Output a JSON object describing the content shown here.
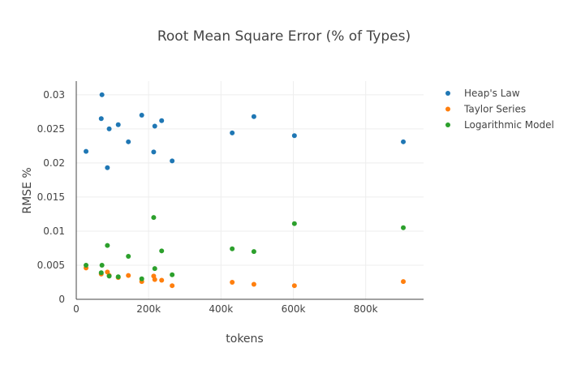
{
  "chart_data": {
    "type": "scatter",
    "title": "Root Mean Square Error (% of Types)",
    "xlabel": "tokens",
    "ylabel": "RMSE %",
    "xlim": [
      0,
      960000
    ],
    "ylim": [
      0,
      0.032
    ],
    "x_ticks": [
      0,
      200000,
      400000,
      600000,
      800000
    ],
    "x_tick_labels": [
      "0",
      "200k",
      "400k",
      "600k",
      "800k"
    ],
    "y_ticks": [
      0,
      0.005,
      0.01,
      0.015,
      0.02,
      0.025,
      0.03
    ],
    "y_tick_labels": [
      "0",
      "0.005",
      "0.01",
      "0.015",
      "0.02",
      "0.025",
      "0.03"
    ],
    "grid": true,
    "legend_position": "top-right",
    "series": [
      {
        "name": "Heap's Law",
        "color": "#1f77b4",
        "points": [
          {
            "x": 27000,
            "y": 0.0217
          },
          {
            "x": 69000,
            "y": 0.0265
          },
          {
            "x": 71000,
            "y": 0.03
          },
          {
            "x": 86000,
            "y": 0.0193
          },
          {
            "x": 91000,
            "y": 0.025
          },
          {
            "x": 116000,
            "y": 0.0256
          },
          {
            "x": 144000,
            "y": 0.0231
          },
          {
            "x": 181000,
            "y": 0.027
          },
          {
            "x": 214000,
            "y": 0.0216
          },
          {
            "x": 217000,
            "y": 0.0254
          },
          {
            "x": 236000,
            "y": 0.0262
          },
          {
            "x": 265000,
            "y": 0.0203
          },
          {
            "x": 431000,
            "y": 0.0244
          },
          {
            "x": 491000,
            "y": 0.0268
          },
          {
            "x": 603000,
            "y": 0.024
          },
          {
            "x": 904000,
            "y": 0.0231
          }
        ]
      },
      {
        "name": "Taylor Series",
        "color": "#ff7f0e",
        "points": [
          {
            "x": 27000,
            "y": 0.0046
          },
          {
            "x": 69000,
            "y": 0.0037
          },
          {
            "x": 86000,
            "y": 0.004
          },
          {
            "x": 91000,
            "y": 0.0035
          },
          {
            "x": 116000,
            "y": 0.0032
          },
          {
            "x": 144000,
            "y": 0.0035
          },
          {
            "x": 181000,
            "y": 0.0026
          },
          {
            "x": 214000,
            "y": 0.0034
          },
          {
            "x": 217000,
            "y": 0.0029
          },
          {
            "x": 236000,
            "y": 0.0028
          },
          {
            "x": 265000,
            "y": 0.002
          },
          {
            "x": 431000,
            "y": 0.0025
          },
          {
            "x": 491000,
            "y": 0.0022
          },
          {
            "x": 603000,
            "y": 0.002
          },
          {
            "x": 904000,
            "y": 0.0026
          }
        ]
      },
      {
        "name": "Logarithmic Model",
        "color": "#2ca02c",
        "points": [
          {
            "x": 27000,
            "y": 0.005
          },
          {
            "x": 69000,
            "y": 0.0039
          },
          {
            "x": 71000,
            "y": 0.005
          },
          {
            "x": 86000,
            "y": 0.0079
          },
          {
            "x": 91000,
            "y": 0.0034
          },
          {
            "x": 116000,
            "y": 0.0033
          },
          {
            "x": 144000,
            "y": 0.0063
          },
          {
            "x": 181000,
            "y": 0.003
          },
          {
            "x": 214000,
            "y": 0.012
          },
          {
            "x": 217000,
            "y": 0.0045
          },
          {
            "x": 236000,
            "y": 0.0071
          },
          {
            "x": 265000,
            "y": 0.0036
          },
          {
            "x": 431000,
            "y": 0.0074
          },
          {
            "x": 491000,
            "y": 0.007
          },
          {
            "x": 603000,
            "y": 0.0111
          },
          {
            "x": 904000,
            "y": 0.0105
          }
        ]
      }
    ]
  }
}
